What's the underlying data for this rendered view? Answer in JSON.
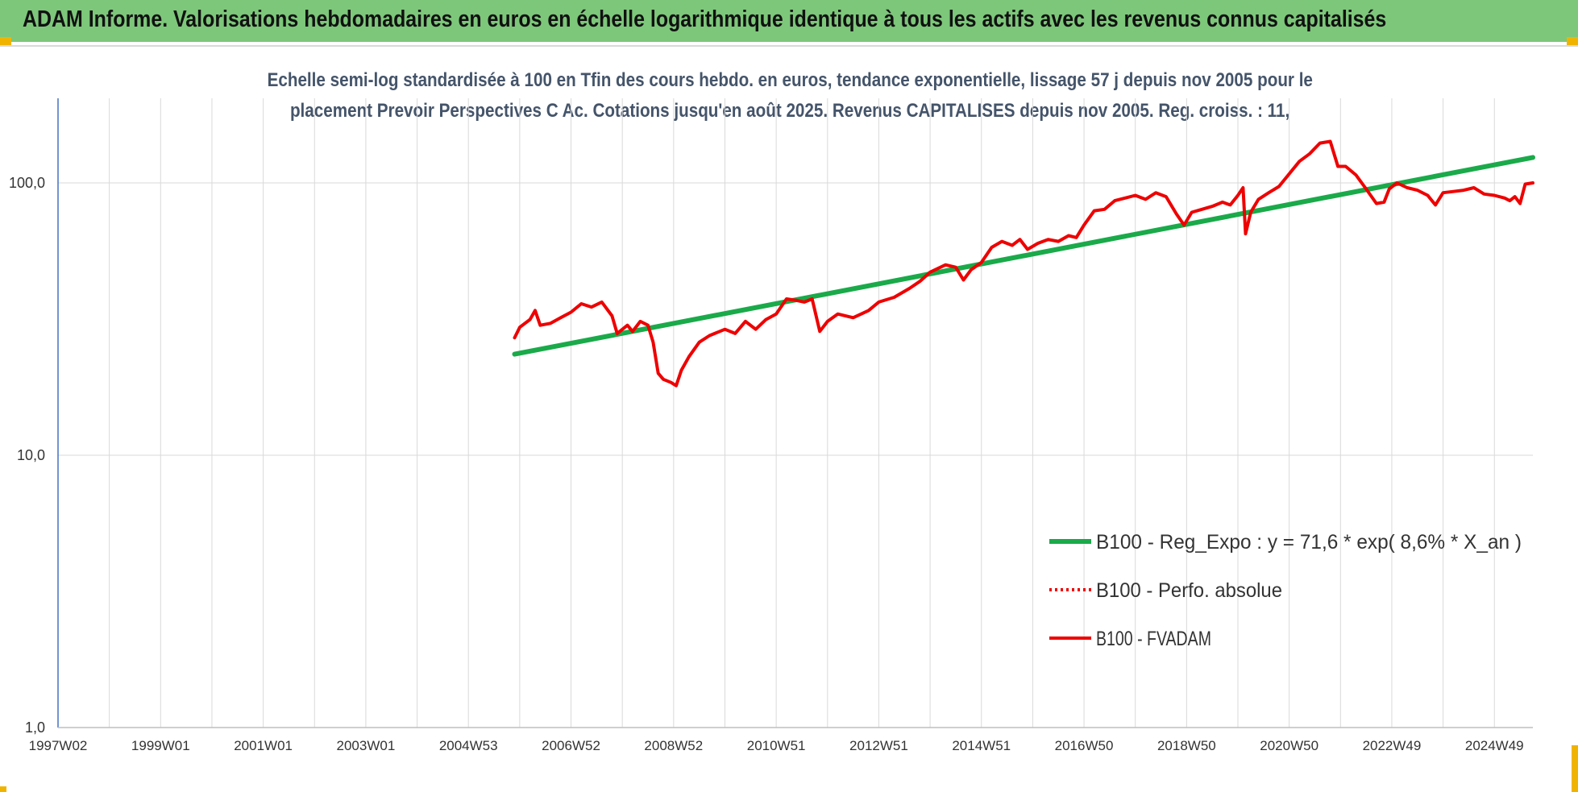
{
  "header": {
    "title": "ADAM Informe. Valorisations hebdomadaires en euros en échelle logarithmique identique à tous les actifs avec les revenus connus capitalisés"
  },
  "colors": {
    "banner": "#7dc77a",
    "regression": "#1aaa4a",
    "fvadam": "#ee0000",
    "perfo": "#ee0000",
    "corner": "#f0b400"
  },
  "chart_data": {
    "type": "line",
    "title_line1": "Echelle semi-log standardisée à 100 en Tfin des cours hebdo. en euros, tendance exponentielle, lissage 57 j depuis nov 2005 pour le",
    "title_line2": "placement Prevoir Perspectives C Ac. Cotations jusqu'en août 2025. Revenus CAPITALISES depuis nov 2005. Reg. croiss. : 11,",
    "y_scale": "log",
    "ylim": [
      1,
      200
    ],
    "y_ticks": [
      {
        "value": 1,
        "label": "1,0"
      },
      {
        "value": 10,
        "label": "10,0"
      },
      {
        "value": 100,
        "label": "100,0"
      }
    ],
    "xlim": [
      1997.0,
      2025.75
    ],
    "x_ticks": [
      {
        "value": 1997.0,
        "label": "1997W02"
      },
      {
        "value": 1999.0,
        "label": "1999W01"
      },
      {
        "value": 2001.0,
        "label": "2001W01"
      },
      {
        "value": 2003.0,
        "label": "2003W01"
      },
      {
        "value": 2005.0,
        "label": "2004W53"
      },
      {
        "value": 2007.0,
        "label": "2006W52"
      },
      {
        "value": 2009.0,
        "label": "2008W52"
      },
      {
        "value": 2011.0,
        "label": "2010W51"
      },
      {
        "value": 2013.0,
        "label": "2012W51"
      },
      {
        "value": 2015.0,
        "label": "2014W51"
      },
      {
        "value": 2017.0,
        "label": "2016W50"
      },
      {
        "value": 2019.0,
        "label": "2018W50"
      },
      {
        "value": 2021.0,
        "label": "2020W50"
      },
      {
        "value": 2023.0,
        "label": "2022W49"
      },
      {
        "value": 2025.0,
        "label": "2024W49"
      }
    ],
    "grid": "vertical and horizontal",
    "legend_position": "bottom-right",
    "series": [
      {
        "name": "B100 - Reg_Expo : y = 71,6 * exp( 8,6% *  X_an )",
        "style": "solid-thick",
        "x": [
          2005.9,
          2025.75
        ],
        "y": [
          23.5,
          124.0
        ]
      },
      {
        "name": "B100 - Perfo. absolue",
        "style": "dotted",
        "x": [],
        "y": []
      },
      {
        "name": "B100 - FVADAM",
        "style": "solid",
        "x": [
          2005.9,
          2006.0,
          2006.2,
          2006.3,
          2006.4,
          2006.6,
          2006.8,
          2007.0,
          2007.2,
          2007.4,
          2007.6,
          2007.8,
          2007.9,
          2008.1,
          2008.2,
          2008.35,
          2008.5,
          2008.6,
          2008.7,
          2008.8,
          2008.95,
          2009.05,
          2009.15,
          2009.3,
          2009.5,
          2009.7,
          2010.0,
          2010.2,
          2010.4,
          2010.6,
          2010.8,
          2011.0,
          2011.2,
          2011.4,
          2011.55,
          2011.7,
          2011.85,
          2012.0,
          2012.2,
          2012.5,
          2012.8,
          2013.0,
          2013.3,
          2013.6,
          2013.8,
          2014.0,
          2014.3,
          2014.5,
          2014.65,
          2014.8,
          2015.0,
          2015.2,
          2015.4,
          2015.6,
          2015.75,
          2015.9,
          2016.1,
          2016.3,
          2016.5,
          2016.7,
          2016.85,
          2017.0,
          2017.2,
          2017.4,
          2017.6,
          2017.8,
          2018.0,
          2018.2,
          2018.4,
          2018.6,
          2018.8,
          2018.95,
          2019.1,
          2019.3,
          2019.5,
          2019.7,
          2019.85,
          2020.0,
          2020.1,
          2020.15,
          2020.25,
          2020.4,
          2020.6,
          2020.8,
          2021.0,
          2021.2,
          2021.4,
          2021.6,
          2021.8,
          2021.95,
          2022.1,
          2022.3,
          2022.5,
          2022.7,
          2022.85,
          2022.95,
          2023.1,
          2023.3,
          2023.5,
          2023.7,
          2023.85,
          2024.0,
          2024.2,
          2024.4,
          2024.6,
          2024.8,
          2025.0,
          2025.2,
          2025.3,
          2025.4,
          2025.5,
          2025.6,
          2025.75
        ],
        "y": [
          27.0,
          29.5,
          31.5,
          34.0,
          30.0,
          30.5,
          32.0,
          33.5,
          36.0,
          35.0,
          36.5,
          32.5,
          28.0,
          30.0,
          28.5,
          31.0,
          30.0,
          26.0,
          20.0,
          19.0,
          18.5,
          18.0,
          20.5,
          23.0,
          26.0,
          27.5,
          29.0,
          28.0,
          31.0,
          29.0,
          31.5,
          33.0,
          37.5,
          37.0,
          36.5,
          37.5,
          28.5,
          31.0,
          33.0,
          32.0,
          34.0,
          36.5,
          38.0,
          41.0,
          43.5,
          47.0,
          50.0,
          49.0,
          44.0,
          48.0,
          51.0,
          58.0,
          61.0,
          59.0,
          62.0,
          57.0,
          60.0,
          62.0,
          61.0,
          64.0,
          63.0,
          70.0,
          79.0,
          80.0,
          86.0,
          88.0,
          90.0,
          87.0,
          92.0,
          89.0,
          77.0,
          70.0,
          78.0,
          80.0,
          82.0,
          85.0,
          83.0,
          90.0,
          96.0,
          65.0,
          78.0,
          87.0,
          92.0,
          97.0,
          108.0,
          120.0,
          128.0,
          140.0,
          142.0,
          115.0,
          115.0,
          107.0,
          95.0,
          84.0,
          85.0,
          95.0,
          100.0,
          96.0,
          94.0,
          90.0,
          83.0,
          92.0,
          93.0,
          94.0,
          96.0,
          91.0,
          90.0,
          88.0,
          86.0,
          89.0,
          84.0,
          99.0,
          100.0
        ]
      }
    ]
  }
}
